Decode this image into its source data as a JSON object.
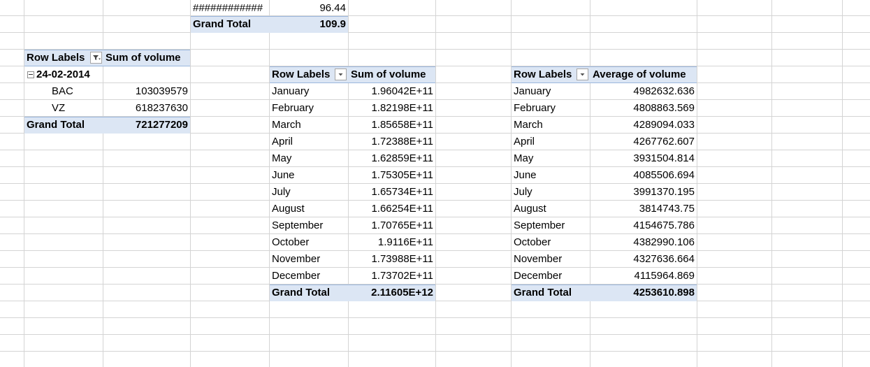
{
  "top_pivot": {
    "row_value_label": "############",
    "row_value": "96.44",
    "grand_total_label": "Grand Total",
    "grand_total_value": "109.9"
  },
  "pivot_by_date": {
    "row_labels_header": "Row Labels",
    "value_header": "Sum of volume",
    "group_label": "24-02-2014",
    "rows": [
      {
        "label": "BAC",
        "value": "103039579"
      },
      {
        "label": "VZ",
        "value": "618237630"
      }
    ],
    "grand_total_label": "Grand Total",
    "grand_total_value": "721277209",
    "header_icon": "filter-dropdown-icon",
    "group_icon": "collapse-icon"
  },
  "pivot_sum_by_month": {
    "row_labels_header": "Row Labels",
    "value_header": "Sum of volume",
    "rows": [
      {
        "label": "January",
        "value": "1.96042E+11"
      },
      {
        "label": "February",
        "value": "1.82198E+11"
      },
      {
        "label": "March",
        "value": "1.85658E+11"
      },
      {
        "label": "April",
        "value": "1.72388E+11"
      },
      {
        "label": "May",
        "value": "1.62859E+11"
      },
      {
        "label": "June",
        "value": "1.75305E+11"
      },
      {
        "label": "July",
        "value": "1.65734E+11"
      },
      {
        "label": "August",
        "value": "1.66254E+11"
      },
      {
        "label": "September",
        "value": "1.70765E+11"
      },
      {
        "label": "October",
        "value": "1.9116E+11"
      },
      {
        "label": "November",
        "value": "1.73988E+11"
      },
      {
        "label": "December",
        "value": "1.73702E+11"
      }
    ],
    "grand_total_label": "Grand Total",
    "grand_total_value": "2.11605E+12",
    "header_icon": "dropdown-arrow-icon"
  },
  "pivot_avg_by_month": {
    "row_labels_header": "Row Labels",
    "value_header": "Average of volume",
    "rows": [
      {
        "label": "January",
        "value": "4982632.636"
      },
      {
        "label": "February",
        "value": "4808863.569"
      },
      {
        "label": "March",
        "value": "4289094.033"
      },
      {
        "label": "April",
        "value": "4267762.607"
      },
      {
        "label": "May",
        "value": "3931504.814"
      },
      {
        "label": "June",
        "value": "4085506.694"
      },
      {
        "label": "July",
        "value": "3991370.195"
      },
      {
        "label": "August",
        "value": "3814743.75"
      },
      {
        "label": "September",
        "value": "4154675.786"
      },
      {
        "label": "October",
        "value": "4382990.106"
      },
      {
        "label": "November",
        "value": "4327636.664"
      },
      {
        "label": "December",
        "value": "4115964.869"
      }
    ],
    "grand_total_label": "Grand Total",
    "grand_total_value": "4253610.898",
    "header_icon": "dropdown-arrow-icon"
  },
  "colors": {
    "gridline": "#d4d4d4",
    "header_fill": "#dce6f4",
    "band_border": "#9bb7dd"
  }
}
